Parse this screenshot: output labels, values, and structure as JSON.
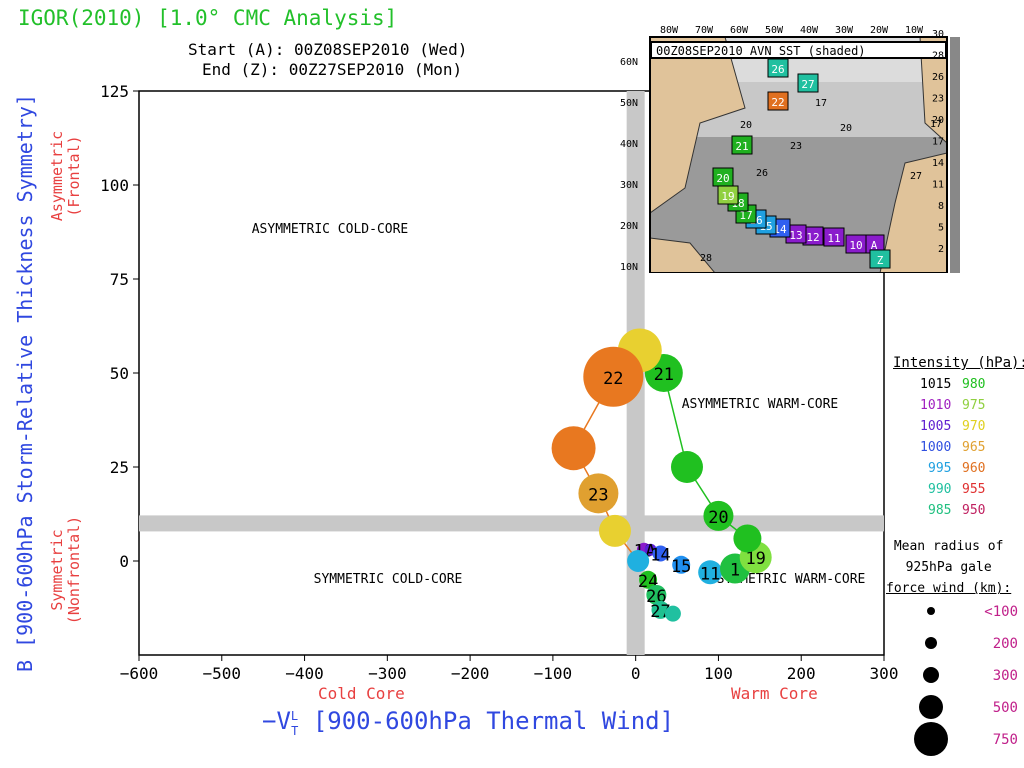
{
  "header": {
    "title": "IGOR(2010) [1.0° CMC Analysis]",
    "start": "Start (A): 00Z08SEP2010 (Wed)",
    "end": "End (Z): 00Z27SEP2010 (Mon)"
  },
  "axes": {
    "ylabel": "B [900-600hPa Storm-Relative Thickness Symmetry]",
    "xlabel": "−V",
    "xlabel_rest": " [900-600hPa Thermal Wind]",
    "x_left_sub": "Cold Core",
    "x_right_sub": "Warm Core",
    "y_top_sub": "Asymmetric\n(Frontal)",
    "y_bottom_sub": "Symmetric\n(Nonfrontal)"
  },
  "quadrants": {
    "asym_cold": "ASYMMETRIC COLD-CORE",
    "asym_warm": "ASYMMETRIC WARM-CORE",
    "sym_cold": "SYMMETRIC COLD-CORE",
    "sym_warm": "SYMMETRIC WARM-CORE"
  },
  "chart_data": {
    "type": "scatter",
    "xlim": [
      -600,
      300
    ],
    "ylim": [
      -25,
      125
    ],
    "xticks": [
      -600,
      -500,
      -400,
      -300,
      -200,
      -100,
      0,
      100,
      200,
      300
    ],
    "yticks": [
      0,
      25,
      50,
      75,
      100,
      125
    ],
    "threshold_lines": {
      "x": 0,
      "y": 10
    },
    "points": [
      {
        "x": 10,
        "y": 3,
        "r": 7,
        "color": "#8a1ccc",
        "label": "10"
      },
      {
        "x": 18,
        "y": 3,
        "r": 6,
        "color": "#5a20d8",
        "label": "A"
      },
      {
        "x": 30,
        "y": 2,
        "r": 8,
        "color": "#3060f0",
        "label": "14"
      },
      {
        "x": 55,
        "y": -1,
        "r": 9,
        "color": "#2090f0",
        "label": "15"
      },
      {
        "x": 90,
        "y": -3,
        "r": 12,
        "color": "#20b0e0",
        "label": "11"
      },
      {
        "x": 120,
        "y": -2,
        "r": 15,
        "color": "#20c040",
        "label": "1"
      },
      {
        "x": 145,
        "y": 1,
        "r": 16,
        "color": "#80e040",
        "label": "19"
      },
      {
        "x": 135,
        "y": 6,
        "r": 14,
        "color": "#20c020",
        "label": ""
      },
      {
        "x": 100,
        "y": 12,
        "r": 15,
        "color": "#20c020",
        "label": "20"
      },
      {
        "x": 62,
        "y": 25,
        "r": 16,
        "color": "#20c020",
        "label": ""
      },
      {
        "x": 34,
        "y": 50,
        "r": 19,
        "color": "#20c020",
        "label": "21"
      },
      {
        "x": 5,
        "y": 56,
        "r": 22,
        "color": "#e8d030",
        "label": ""
      },
      {
        "x": -27,
        "y": 49,
        "r": 30,
        "color": "#e87820",
        "label": "22"
      },
      {
        "x": -75,
        "y": 30,
        "r": 22,
        "color": "#e87820",
        "label": ""
      },
      {
        "x": -45,
        "y": 18,
        "r": 20,
        "color": "#e0a030",
        "label": "23"
      },
      {
        "x": -25,
        "y": 8,
        "r": 16,
        "color": "#e8d030",
        "label": ""
      },
      {
        "x": 3,
        "y": 0,
        "r": 11,
        "color": "#20b0e0",
        "label": ""
      },
      {
        "x": 15,
        "y": -5,
        "r": 9,
        "color": "#20c020",
        "label": "24"
      },
      {
        "x": 25,
        "y": -9,
        "r": 10,
        "color": "#20c060",
        "label": "26"
      },
      {
        "x": 30,
        "y": -13,
        "r": 9,
        "color": "#20c090",
        "label": "27"
      },
      {
        "x": 45,
        "y": -14,
        "r": 8,
        "color": "#20c0a0",
        "label": ""
      }
    ],
    "tracks": [
      {
        "color": "#20c020",
        "pts": [
          [
            145,
            1
          ],
          [
            135,
            6
          ],
          [
            100,
            12
          ],
          [
            62,
            25
          ],
          [
            34,
            50
          ],
          [
            5,
            56
          ]
        ]
      },
      {
        "color": "#e87820",
        "pts": [
          [
            5,
            56
          ],
          [
            -27,
            49
          ],
          [
            -75,
            30
          ],
          [
            -45,
            18
          ],
          [
            -25,
            8
          ],
          [
            3,
            0
          ]
        ]
      }
    ]
  },
  "legend": {
    "title": "Intensity (hPa):",
    "rows": [
      {
        "a": "1015",
        "ac": "#000000",
        "b": "980",
        "bc": "#20c020"
      },
      {
        "a": "1010",
        "ac": "#a020c0",
        "b": "975",
        "bc": "#90d040"
      },
      {
        "a": "1005",
        "ac": "#6020d0",
        "b": "970",
        "bc": "#e0d020"
      },
      {
        "a": "1000",
        "ac": "#3050e0",
        "b": "965",
        "bc": "#e0a030"
      },
      {
        "a": "995",
        "ac": "#20a0e0",
        "b": "960",
        "bc": "#e07020"
      },
      {
        "a": "990",
        "ac": "#20c0a0",
        "b": "955",
        "bc": "#e03030"
      },
      {
        "a": "985",
        "ac": "#20c080",
        "b": "950",
        "bc": "#c02060"
      }
    ],
    "gale_title": "Mean radius of\n925hPa gale\nforce wind (km):",
    "gale": [
      {
        "label": "<100",
        "r": 4
      },
      {
        "label": "200",
        "r": 6
      },
      {
        "label": "300",
        "r": 8
      },
      {
        "label": "500",
        "r": 12
      },
      {
        "label": "750",
        "r": 17
      }
    ]
  },
  "inset": {
    "caption": "00Z08SEP2010 AVN SST (shaded)",
    "lon_labels": [
      "80W",
      "70W",
      "60W",
      "50W",
      "40W",
      "30W",
      "20W",
      "10W"
    ],
    "lat_labels": [
      "60N",
      "50N",
      "40N",
      "30N",
      "20N",
      "10N"
    ],
    "colorbar": [
      "30",
      "28",
      "26",
      "23",
      "20",
      "17",
      "14",
      "11",
      "8",
      "5",
      "2"
    ],
    "sst_labels": [
      "17",
      "20",
      "20",
      "23",
      "26",
      "27",
      "28",
      "17"
    ],
    "track_boxes": [
      {
        "label": "A",
        "color": "#8a1ccc"
      },
      {
        "label": "10",
        "color": "#8a1ccc"
      },
      {
        "label": "11",
        "color": "#8a1ccc"
      },
      {
        "label": "12",
        "color": "#8a1ccc"
      },
      {
        "label": "13",
        "color": "#8a1ccc"
      },
      {
        "label": "14",
        "color": "#3060f0"
      },
      {
        "label": "15",
        "color": "#20a0e0"
      },
      {
        "label": "16",
        "color": "#20a0e0"
      },
      {
        "label": "17",
        "color": "#20b020"
      },
      {
        "label": "18",
        "color": "#20b020"
      },
      {
        "label": "19",
        "color": "#90d040"
      },
      {
        "label": "20",
        "color": "#20b020"
      },
      {
        "label": "21",
        "color": "#20b020"
      },
      {
        "label": "22",
        "color": "#e07020"
      },
      {
        "label": "26",
        "color": "#20c0a0"
      },
      {
        "label": "27",
        "color": "#20c0a0"
      },
      {
        "label": "Z",
        "color": "#20c0a0"
      }
    ]
  }
}
